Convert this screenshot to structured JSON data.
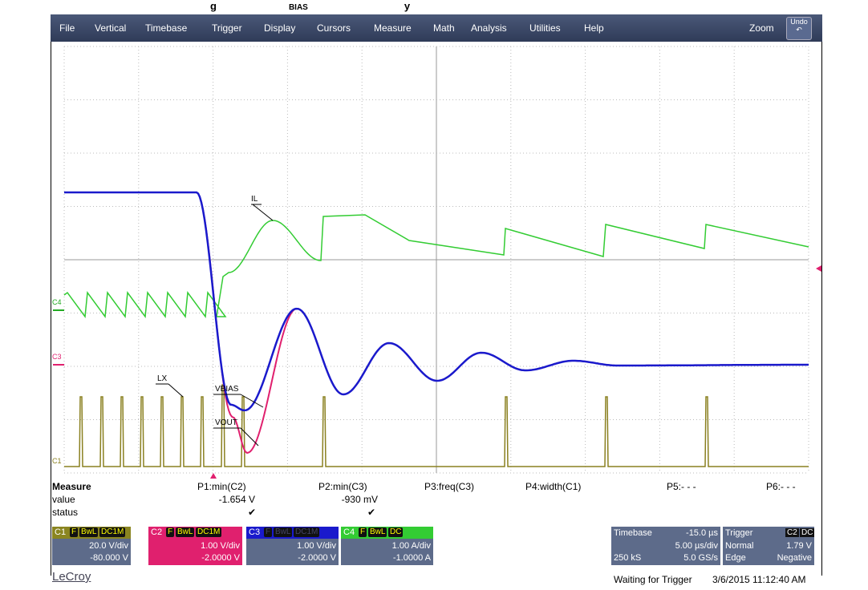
{
  "caption_fragments": [
    "g",
    "BIAS",
    "y"
  ],
  "menu": {
    "items": [
      "File",
      "Vertical",
      "Timebase",
      "Trigger",
      "Display",
      "Cursors",
      "Measure",
      "Math",
      "Analysis",
      "Utilities",
      "Help"
    ],
    "zoom": "Zoom",
    "undo": "Undo"
  },
  "waveform_labels": [
    "IL",
    "LX",
    "VBIAS",
    "VOUT"
  ],
  "channel_markers": [
    "C4",
    "C3",
    "C1"
  ],
  "measure": {
    "title": "Measure",
    "params": [
      "P1:min(C2)",
      "P2:min(C3)",
      "P3:freq(C3)",
      "P4:width(C1)",
      "P5:- - -",
      "P6:- - -"
    ],
    "row_labels": [
      "value",
      "status"
    ],
    "values": [
      "-1.654 V",
      "-930 mV"
    ],
    "status": [
      "✔",
      "✔"
    ]
  },
  "channels": [
    {
      "name": "C1",
      "flags": [
        "F",
        "BwL",
        "DC1M"
      ],
      "scale": "20.0 V/div",
      "offset": "-80.000 V"
    },
    {
      "name": "C2",
      "flags": [
        "F",
        "BwL",
        "DC1M"
      ],
      "scale": "1.00 V/div",
      "offset": "-2.0000 V"
    },
    {
      "name": "C3",
      "flags": [
        "F",
        "BwL",
        "DC1M"
      ],
      "scale": "1.00 V/div",
      "offset": "-2.0000 V"
    },
    {
      "name": "C4",
      "flags": [
        "F",
        "BwL",
        "DC"
      ],
      "scale": "1.00 A/div",
      "offset": "-1.0000 A"
    }
  ],
  "timebase": {
    "title": "Timebase",
    "delay": "-15.0 µs",
    "scale": "5.00 µs/div",
    "samples": "250 kS",
    "rate": "5.0 GS/s"
  },
  "trigger": {
    "title": "Trigger",
    "source": "C2",
    "coupling": "DC",
    "mode": "Normal",
    "level": "1.79 V",
    "type": "Edge",
    "slope": "Negative"
  },
  "footer": {
    "brand": "LeCroy",
    "status": "Waiting for Trigger",
    "datetime": "3/6/2015 11:12:40 AM"
  }
}
